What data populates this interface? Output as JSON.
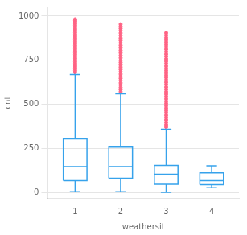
{
  "chart_data": {
    "type": "box",
    "xlabel": "weathersit",
    "ylabel": "cnt",
    "x": [
      1,
      2,
      3,
      4
    ],
    "boxes": [
      {
        "q1": 68,
        "median": 148,
        "q3": 305,
        "whisker_low": 5,
        "whisker_high": 670,
        "outliers": [
          682,
          692,
          702,
          713,
          722,
          732,
          742,
          752,
          762,
          773,
          783,
          793,
          803,
          814,
          824,
          834,
          845,
          855,
          865,
          876,
          886,
          896,
          907,
          917,
          927,
          938,
          948,
          958,
          968,
          975,
          982
        ]
      },
      {
        "q1": 82,
        "median": 148,
        "q3": 258,
        "whisker_low": 5,
        "whisker_high": 560,
        "outliers": [
          572,
          584,
          596,
          610,
          622,
          636,
          648,
          660,
          672,
          685,
          698,
          712,
          724,
          738,
          750,
          764,
          778,
          792,
          806,
          820,
          834,
          848,
          862,
          876,
          890,
          904,
          918,
          930,
          942,
          954
        ]
      },
      {
        "q1": 48,
        "median": 105,
        "q3": 155,
        "whisker_low": 2,
        "whisker_high": 360,
        "outliers": [
          372,
          385,
          398,
          412,
          425,
          438,
          452,
          465,
          478,
          492,
          505,
          518,
          532,
          545,
          558,
          572,
          585,
          598,
          612,
          625,
          638,
          652,
          665,
          678,
          692,
          705,
          718,
          732,
          745,
          758,
          772,
          785,
          798,
          812,
          825,
          838,
          852,
          865,
          878,
          892,
          905
        ]
      },
      {
        "q1": 45,
        "median": 68,
        "q3": 112,
        "whisker_low": 28,
        "whisker_high": 152,
        "outliers": []
      }
    ],
    "xlim": [
      0.4,
      4.6
    ],
    "xticks": [
      1,
      2,
      3,
      4
    ],
    "ylim": [
      -30,
      1050
    ],
    "yticks": [
      0,
      250,
      500,
      750,
      1000
    ],
    "grid": true
  }
}
